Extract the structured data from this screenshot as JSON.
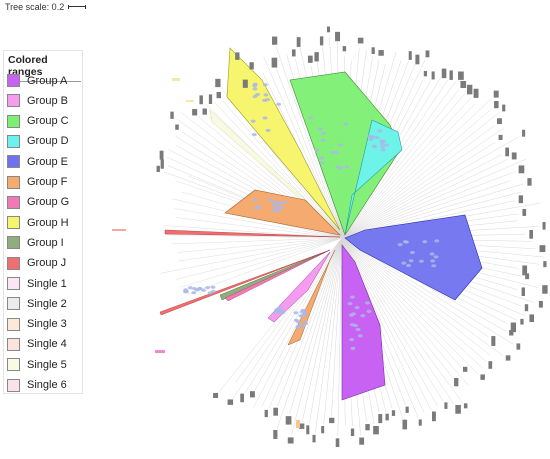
{
  "tree_scale": {
    "label": "Tree scale: 0.2"
  },
  "legend": {
    "title": "Colored ranges",
    "items": [
      {
        "label": "Group A",
        "color": "#c862f2"
      },
      {
        "label": "Group B",
        "color": "#f59bf0"
      },
      {
        "label": "Group C",
        "color": "#7cf072"
      },
      {
        "label": "Group D",
        "color": "#6cf2ee"
      },
      {
        "label": "Group E",
        "color": "#6f72ef"
      },
      {
        "label": "Group F",
        "color": "#f5aa70"
      },
      {
        "label": "Group G",
        "color": "#f27ab4"
      },
      {
        "label": "Group H",
        "color": "#f6f56d"
      },
      {
        "label": "Group I",
        "color": "#8fae7c"
      },
      {
        "label": "Group J",
        "color": "#ef6f70"
      },
      {
        "label": "Single 1",
        "color": "#fbe6f6"
      },
      {
        "label": "Single 2",
        "color": "#ececec"
      },
      {
        "label": "Single 3",
        "color": "#fbeadc"
      },
      {
        "label": "Single 4",
        "color": "#fbe3dc"
      },
      {
        "label": "Single 5",
        "color": "#f8fae3"
      },
      {
        "label": "Single 6",
        "color": "#fbe1ea"
      }
    ]
  }
}
